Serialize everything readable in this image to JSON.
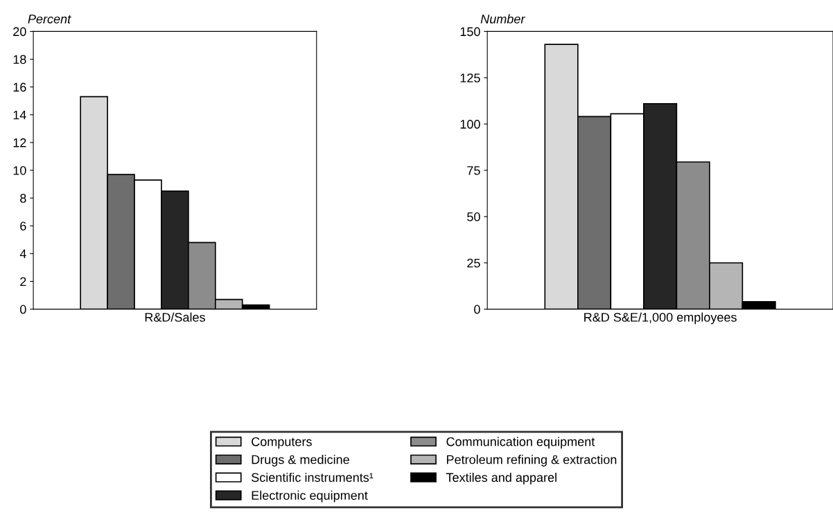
{
  "chart_data": [
    {
      "type": "bar",
      "ylabel": "Percent",
      "categories": [
        "R&D/Sales"
      ],
      "ylim": [
        0,
        20
      ],
      "yticks": [
        0,
        2,
        4,
        6,
        8,
        10,
        12,
        14,
        16,
        18,
        20
      ],
      "grid": false,
      "legend": "bottom",
      "series": [
        {
          "name": "Computers",
          "color": "#d9d9d9",
          "values": [
            15.3
          ]
        },
        {
          "name": "Drugs & medicine",
          "color": "#6e6e6e",
          "values": [
            9.7
          ]
        },
        {
          "name": "Scientific instruments¹",
          "color": "#ffffff",
          "values": [
            9.3
          ]
        },
        {
          "name": "Electronic equipment",
          "color": "#262626",
          "values": [
            8.5
          ]
        },
        {
          "name": "Communication equipment",
          "color": "#8c8c8c",
          "values": [
            4.8
          ]
        },
        {
          "name": "Petroleum refining & extraction",
          "color": "#b5b5b5",
          "values": [
            0.7
          ]
        },
        {
          "name": "Textiles and apparel",
          "color": "#000000",
          "values": [
            0.3
          ]
        }
      ]
    },
    {
      "type": "bar",
      "ylabel": "Number",
      "categories": [
        "R&D S&E/1,000 employees"
      ],
      "ylim": [
        0,
        150
      ],
      "yticks": [
        0,
        25,
        50,
        75,
        100,
        125,
        150
      ],
      "grid": false,
      "series": [
        {
          "name": "Computers",
          "color": "#d9d9d9",
          "values": [
            143
          ]
        },
        {
          "name": "Drugs & medicine",
          "color": "#6e6e6e",
          "values": [
            104
          ]
        },
        {
          "name": "Scientific instruments¹",
          "color": "#ffffff",
          "values": [
            105.5
          ]
        },
        {
          "name": "Electronic equipment",
          "color": "#262626",
          "values": [
            111
          ]
        },
        {
          "name": "Communication equipment",
          "color": "#8c8c8c",
          "values": [
            79.5
          ]
        },
        {
          "name": "Petroleum refining & extraction",
          "color": "#b5b5b5",
          "values": [
            25
          ]
        },
        {
          "name": "Textiles and apparel",
          "color": "#000000",
          "values": [
            4
          ]
        }
      ]
    }
  ]
}
